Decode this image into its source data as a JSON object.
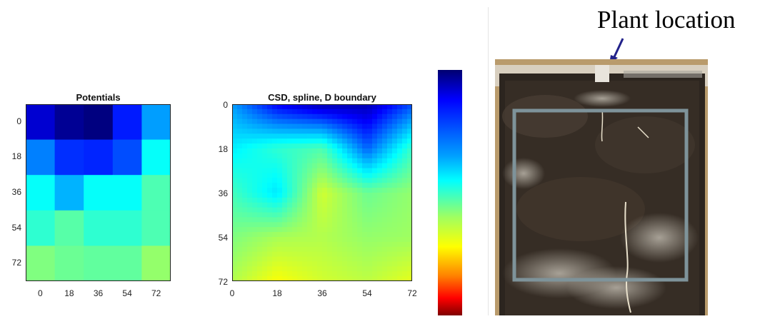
{
  "chart_data": [
    {
      "type": "heatmap",
      "title": "Potentials",
      "x": [
        0,
        18,
        36,
        54,
        72
      ],
      "y": [
        0,
        18,
        36,
        54,
        72
      ],
      "xticks": [
        "0",
        "18",
        "36",
        "54",
        "72"
      ],
      "yticks": [
        "0",
        "18",
        "36",
        "54",
        "72"
      ],
      "values": [
        [
          0.08,
          0.02,
          0.0,
          0.15,
          0.28
        ],
        [
          0.25,
          0.17,
          0.16,
          0.2,
          0.38
        ],
        [
          0.38,
          0.3,
          0.38,
          0.38,
          0.45
        ],
        [
          0.42,
          0.46,
          0.42,
          0.42,
          0.45
        ],
        [
          0.5,
          0.48,
          0.47,
          0.47,
          0.52
        ]
      ],
      "colormap": "jet",
      "grid": false
    },
    {
      "type": "heatmap",
      "title": "CSD, spline, D boundary",
      "x": [
        0,
        18,
        36,
        54,
        72
      ],
      "y": [
        0,
        18,
        36,
        54,
        72
      ],
      "xticks": [
        "0",
        "18",
        "36",
        "54",
        "72"
      ],
      "yticks": [
        "0",
        "18",
        "36",
        "54",
        "72"
      ],
      "values": [
        [
          0.28,
          0.12,
          0.05,
          0.05,
          0.2
        ],
        [
          0.36,
          0.42,
          0.45,
          0.22,
          0.43
        ],
        [
          0.44,
          0.35,
          0.58,
          0.48,
          0.52
        ],
        [
          0.5,
          0.54,
          0.55,
          0.52,
          0.53
        ],
        [
          0.55,
          0.62,
          0.58,
          0.56,
          0.6
        ]
      ],
      "colormap": "jet",
      "interpolation": "smooth",
      "grid": false
    }
  ],
  "colorbar": {
    "colormap": "jet",
    "orientation": "vertical",
    "labels": false
  },
  "photo": {
    "label": "Plant location",
    "arrow_color": "#22228a",
    "box_color": "#7e939a",
    "icon": "soil-root-photo"
  }
}
